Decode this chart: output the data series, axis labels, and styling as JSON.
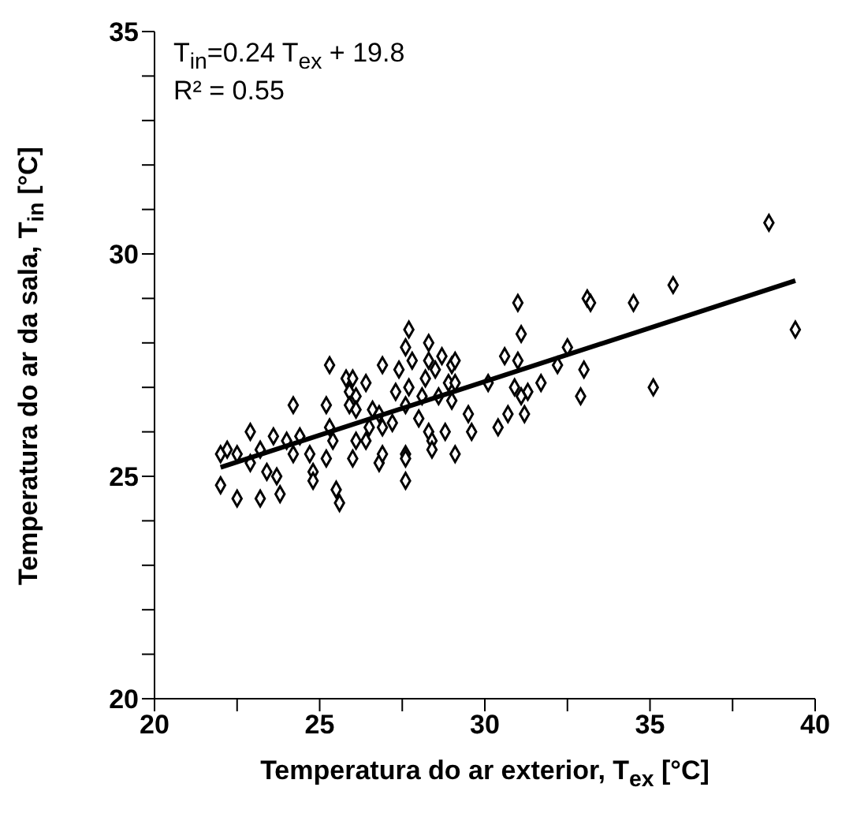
{
  "chart_data": {
    "type": "scatter",
    "xlabel": "Temperatura do ar exterior, T$_{ex}$ [°C]",
    "ylabel": "Temperatura do ar da sala, T$_{in}$ [°C]",
    "annotations": [
      "T$_{in}$=0.24 T$_{ex}$ + 19.8",
      "R² = 0.55"
    ],
    "xlim": [
      20,
      40
    ],
    "xticks": [
      20,
      {
        "value": 22.5,
        "label": null
      },
      25,
      {
        "value": 27.5,
        "label": null
      },
      30,
      {
        "value": 32.5,
        "label": null
      },
      35,
      {
        "value": 37.5,
        "label": null
      },
      40
    ],
    "ylim": [
      20,
      35
    ],
    "yticks": [
      20,
      {
        "value": 21,
        "label": null
      },
      {
        "value": 22,
        "label": null
      },
      {
        "value": 23,
        "label": null
      },
      {
        "value": 24,
        "label": null
      },
      25,
      {
        "value": 26,
        "label": null
      },
      {
        "value": 27,
        "label": null
      },
      {
        "value": 28,
        "label": null
      },
      {
        "value": 29,
        "label": null
      },
      30,
      {
        "value": 31,
        "label": null
      },
      {
        "value": 32,
        "label": null
      },
      {
        "value": 33,
        "label": null
      },
      {
        "value": 34,
        "label": null
      },
      35
    ],
    "marker": "diamond",
    "grid": false,
    "legend": false,
    "series": [
      {
        "type": "scatter",
        "color": "#000000",
        "x": [
          22.0,
          22.5,
          22.0,
          22.2,
          22.5,
          22.9,
          23.2,
          23.8,
          22.9,
          23.2,
          23.4,
          23.7,
          23.6,
          24.0,
          24.2,
          24.2,
          24.4,
          24.7,
          24.8,
          24.8,
          25.2,
          25.3,
          25.3,
          25.2,
          25.5,
          25.6,
          25.4,
          25.8,
          26.0,
          25.9,
          26.1,
          26.4,
          25.9,
          26.1,
          26.0,
          26.1,
          26.4,
          26.5,
          26.6,
          26.8,
          26.9,
          26.8,
          26.9,
          26.9,
          27.3,
          27.2,
          27.4,
          27.6,
          27.7,
          27.8,
          27.7,
          27.6,
          27.6,
          27.6,
          27.6,
          28.0,
          28.1,
          28.2,
          28.3,
          28.3,
          28.5,
          28.7,
          29.0,
          28.9,
          28.6,
          29.0,
          28.3,
          28.4,
          28.8,
          28.4,
          29.1,
          29.5,
          29.6,
          38.6,
          39.4,
          35.7,
          34.5,
          33.1,
          33.2,
          31.0,
          31.1,
          32.5,
          32.2,
          33.0,
          32.9,
          35.1,
          30.6,
          31.0,
          31.7,
          30.9,
          31.3,
          31.1,
          30.1,
          30.7,
          31.2,
          30.4,
          29.1,
          29.1
        ],
        "values": [
          24.8,
          24.5,
          25.5,
          25.6,
          25.5,
          26.0,
          24.5,
          24.6,
          25.3,
          25.6,
          25.1,
          25.0,
          25.9,
          25.8,
          26.6,
          25.5,
          25.9,
          25.5,
          25.1,
          24.9,
          26.6,
          27.5,
          26.1,
          25.4,
          24.7,
          24.4,
          25.8,
          27.2,
          27.2,
          26.9,
          26.8,
          27.1,
          26.6,
          26.5,
          25.4,
          25.8,
          25.8,
          26.1,
          26.5,
          26.4,
          27.5,
          25.3,
          25.5,
          26.1,
          26.9,
          26.2,
          27.4,
          27.9,
          28.3,
          27.6,
          27.0,
          26.6,
          25.5,
          25.4,
          24.9,
          26.3,
          26.8,
          27.2,
          28.0,
          27.6,
          27.4,
          27.7,
          27.5,
          27.1,
          26.8,
          26.7,
          26.0,
          25.8,
          26.0,
          25.6,
          25.5,
          26.4,
          26.0,
          30.7,
          28.3,
          29.3,
          28.9,
          29.0,
          28.9,
          28.9,
          28.2,
          27.9,
          27.5,
          27.4,
          26.8,
          27.0,
          27.7,
          27.6,
          27.1,
          27.0,
          26.9,
          26.8,
          27.1,
          26.4,
          26.4,
          26.1,
          27.6,
          27.1
        ]
      },
      {
        "type": "line",
        "color": "#000000",
        "x": [
          22.0,
          39.4
        ],
        "values": [
          25.2,
          29.4
        ],
        "marker": "none"
      }
    ]
  }
}
